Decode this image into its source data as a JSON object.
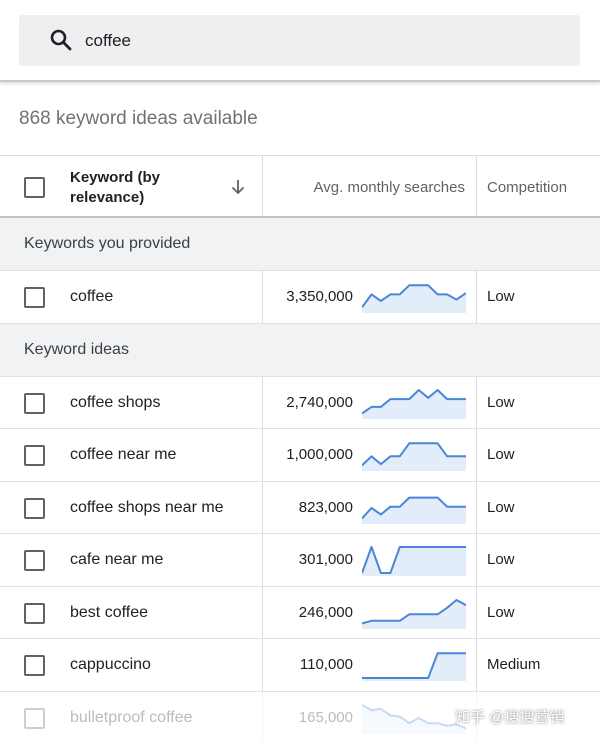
{
  "search": {
    "value": "coffee",
    "icon": "search-icon"
  },
  "summary": {
    "text": "868 keyword ideas available"
  },
  "table": {
    "columns": {
      "keyword": "Keyword (by relevance)",
      "searches": "Avg. monthly searches",
      "competition": "Competition"
    },
    "sections": [
      {
        "title": "Keywords you provided",
        "rows": [
          {
            "keyword": "coffee",
            "searches": "3,350,000",
            "competition": "Low",
            "trend": [
              0.1,
              0.6,
              0.35,
              0.6,
              0.6,
              0.95,
              0.95,
              0.95,
              0.6,
              0.6,
              0.4,
              0.65
            ]
          }
        ]
      },
      {
        "title": "Keyword ideas",
        "rows": [
          {
            "keyword": "coffee shops",
            "searches": "2,740,000",
            "competition": "Low",
            "trend": [
              0.1,
              0.35,
              0.35,
              0.65,
              0.65,
              0.65,
              1.0,
              0.7,
              1.0,
              0.65,
              0.65,
              0.65
            ]
          },
          {
            "keyword": "coffee near me",
            "searches": "1,000,000",
            "competition": "Low",
            "trend": [
              0.1,
              0.45,
              0.15,
              0.45,
              0.45,
              0.95,
              0.95,
              0.95,
              0.95,
              0.45,
              0.45,
              0.45
            ]
          },
          {
            "keyword": "coffee shops near me",
            "searches": "823,000",
            "competition": "Low",
            "trend": [
              0.1,
              0.5,
              0.25,
              0.55,
              0.55,
              0.9,
              0.9,
              0.9,
              0.9,
              0.55,
              0.55,
              0.55
            ]
          },
          {
            "keyword": "cafe near me",
            "searches": "301,000",
            "competition": "Low",
            "trend": [
              0.0,
              1.0,
              0.0,
              0.0,
              1.0,
              1.0,
              1.0,
              1.0,
              1.0,
              1.0,
              1.0,
              1.0
            ]
          },
          {
            "keyword": "best coffee",
            "searches": "246,000",
            "competition": "Low",
            "trend": [
              0.1,
              0.2,
              0.2,
              0.2,
              0.2,
              0.45,
              0.45,
              0.45,
              0.45,
              0.7,
              1.0,
              0.8
            ]
          },
          {
            "keyword": "cappuccino",
            "searches": "110,000",
            "competition": "Medium",
            "trend": [
              0.0,
              0.0,
              0.0,
              0.0,
              0.0,
              0.0,
              0.0,
              0.0,
              0.95,
              0.95,
              0.95,
              0.95
            ]
          },
          {
            "keyword": "bulletproof coffee",
            "searches": "165,000",
            "competition": "",
            "faded": true,
            "trend": [
              1.0,
              0.8,
              0.85,
              0.6,
              0.55,
              0.3,
              0.5,
              0.3,
              0.3,
              0.2,
              0.25,
              0.1
            ]
          }
        ]
      }
    ]
  },
  "watermark": "知乎 @搜搜营销",
  "colors": {
    "trend_line": "#4a86d8",
    "trend_fill": "#e3edf9",
    "section_bg": "#f1f2f3"
  }
}
